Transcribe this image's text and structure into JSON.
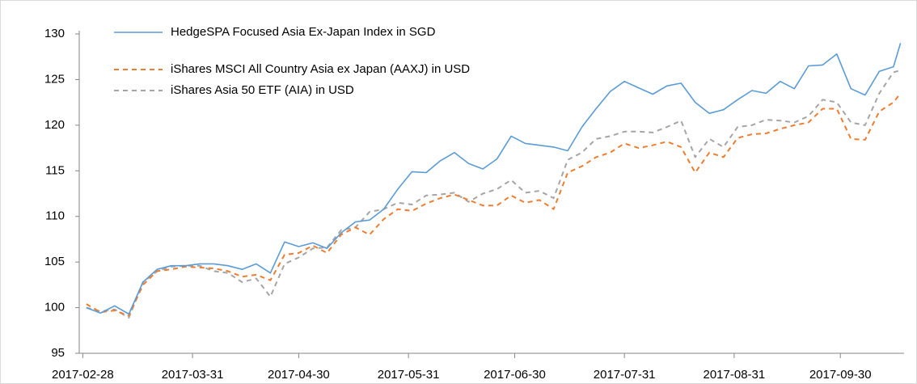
{
  "chart_data": {
    "type": "line",
    "x": [
      "2017-03-01",
      "2017-03-05",
      "2017-03-09",
      "2017-03-13",
      "2017-03-17",
      "2017-03-21",
      "2017-03-25",
      "2017-03-29",
      "2017-04-02",
      "2017-04-06",
      "2017-04-10",
      "2017-04-14",
      "2017-04-18",
      "2017-04-22",
      "2017-04-26",
      "2017-04-30",
      "2017-05-04",
      "2017-05-08",
      "2017-05-12",
      "2017-05-16",
      "2017-05-20",
      "2017-05-24",
      "2017-05-28",
      "2017-06-01",
      "2017-06-05",
      "2017-06-09",
      "2017-06-13",
      "2017-06-17",
      "2017-06-21",
      "2017-06-25",
      "2017-06-29",
      "2017-07-03",
      "2017-07-07",
      "2017-07-11",
      "2017-07-15",
      "2017-07-19",
      "2017-07-23",
      "2017-07-27",
      "2017-07-31",
      "2017-08-04",
      "2017-08-08",
      "2017-08-12",
      "2017-08-16",
      "2017-08-20",
      "2017-08-24",
      "2017-08-28",
      "2017-09-01",
      "2017-09-05",
      "2017-09-09",
      "2017-09-13",
      "2017-09-17",
      "2017-09-21",
      "2017-09-25",
      "2017-09-29",
      "2017-10-03",
      "2017-10-07",
      "2017-10-11",
      "2017-10-15",
      "2017-10-17"
    ],
    "series": [
      {
        "name": "HedgeSPA Focused Asia Ex-Japan Index in SGD",
        "color": "#5b9bd5",
        "dash": false,
        "values": [
          100.0,
          99.4,
          100.2,
          99.3,
          102.8,
          104.2,
          104.6,
          104.6,
          104.8,
          104.8,
          104.6,
          104.2,
          104.8,
          103.8,
          107.2,
          106.7,
          107.1,
          106.5,
          108.2,
          109.4,
          109.6,
          110.8,
          113.0,
          114.9,
          114.8,
          116.1,
          117.0,
          115.8,
          115.2,
          116.3,
          118.8,
          118.0,
          117.8,
          117.6,
          117.2,
          119.8,
          121.8,
          123.7,
          124.8,
          124.1,
          123.4,
          124.3,
          124.6,
          122.5,
          121.3,
          121.7,
          122.8,
          123.8,
          123.5,
          124.8,
          124.0,
          126.5,
          126.6,
          127.8,
          124.0,
          123.3,
          125.9,
          126.4,
          129.0
        ]
      },
      {
        "name": "iShares MSCI All Country Asia ex Japan (AAXJ) in USD",
        "color": "#ed7d31",
        "dash": true,
        "values": [
          100.4,
          99.5,
          99.7,
          99.1,
          102.5,
          104.0,
          104.2,
          104.5,
          104.4,
          104.3,
          104.0,
          103.4,
          103.6,
          103.0,
          105.8,
          106.0,
          106.8,
          106.0,
          108.0,
          108.8,
          108.0,
          109.7,
          110.8,
          110.6,
          111.4,
          112.0,
          112.4,
          111.8,
          111.2,
          111.2,
          112.3,
          111.5,
          111.8,
          110.8,
          114.8,
          115.5,
          116.5,
          117.0,
          118.0,
          117.5,
          117.8,
          118.2,
          117.6,
          114.8,
          117.0,
          116.5,
          118.6,
          119.0,
          119.1,
          119.6,
          120.0,
          120.3,
          121.8,
          121.8,
          118.5,
          118.4,
          121.5,
          122.5,
          123.5
        ]
      },
      {
        "name": "iShares Asia 50 ETF (AIA) in USD",
        "color": "#a5a5a5",
        "dash": true,
        "values": [
          100.0,
          99.6,
          99.8,
          98.9,
          102.8,
          104.0,
          104.5,
          104.6,
          104.6,
          104.0,
          103.8,
          102.8,
          103.2,
          101.2,
          104.8,
          105.5,
          106.5,
          106.6,
          108.5,
          108.8,
          110.5,
          110.8,
          111.5,
          111.3,
          112.3,
          112.4,
          112.6,
          111.6,
          112.5,
          113.0,
          114.0,
          112.6,
          112.8,
          112.0,
          116.2,
          117.0,
          118.5,
          118.8,
          119.3,
          119.3,
          119.2,
          119.8,
          120.5,
          116.5,
          118.5,
          117.6,
          119.8,
          120.0,
          120.6,
          120.5,
          120.3,
          121.0,
          122.8,
          122.5,
          120.3,
          120.0,
          123.5,
          125.8,
          126.0
        ]
      }
    ],
    "xlim": [
      "2017-02-27",
      "2017-10-18"
    ],
    "xticks": [
      "2017-02-28",
      "2017-03-31",
      "2017-04-30",
      "2017-05-31",
      "2017-06-30",
      "2017-07-31",
      "2017-08-31",
      "2017-09-30"
    ],
    "ylim": [
      95,
      130
    ],
    "yticks": [
      95,
      100,
      105,
      110,
      115,
      120,
      125,
      130
    ],
    "grid": false,
    "legend": "top-left"
  }
}
